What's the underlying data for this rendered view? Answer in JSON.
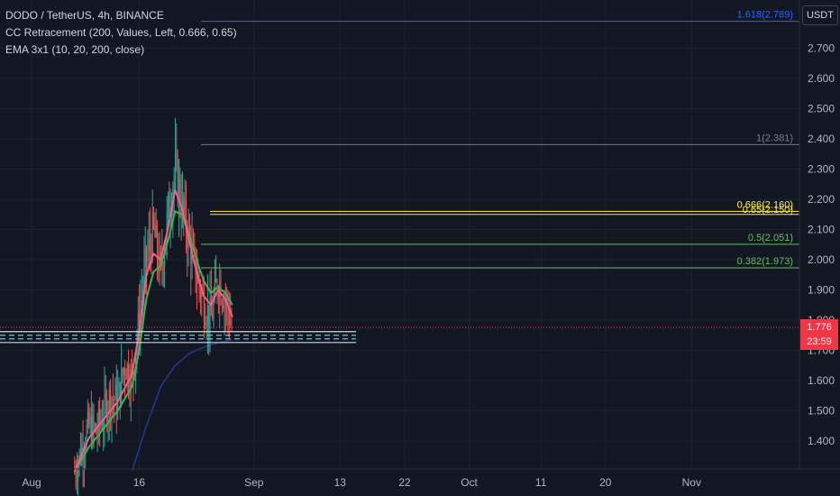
{
  "legend": {
    "symbol": "DODO / TetherUS, 4h, BINANCE",
    "indicator1": "CC Retracement (200, Values, Left, 0.666, 0.65)",
    "indicator2": "EMA 3x1 (10, 20, 200, close)"
  },
  "axis": {
    "currency": "USDT"
  },
  "last_price": {
    "value": "1.776",
    "countdown": "23:59"
  },
  "colors": {
    "background": "#131722",
    "grid": "#1e222d",
    "up": "#26a69a",
    "down": "#ef5350",
    "ema_fast": "#f06292",
    "ema_mid": "#4caf50",
    "ema_slow": "#283593",
    "fib_top": "#2962ff",
    "fib_one": "#787b86",
    "fib_golden": "#ffeb3b",
    "fib_green": "#66bb6a",
    "support_white": "#d1d4dc",
    "support_teal": "#4dd0e1",
    "last_price_line": "#f23645"
  },
  "chart_data": {
    "type": "candlestick",
    "title": "DODO / TetherUS, 4h, BINANCE",
    "xlabel": "",
    "ylabel": "",
    "ylim": [
      1.3,
      2.88
    ],
    "x_ticks": [
      "Aug",
      "16",
      "Sep",
      "13",
      "22",
      "Oct",
      "11",
      "20",
      "Nov"
    ],
    "y_ticks": [
      "1.400",
      "1.500",
      "1.600",
      "1.700",
      "1.800",
      "1.900",
      "2.000",
      "2.100",
      "2.200",
      "2.300",
      "2.400",
      "2.500",
      "2.600",
      "2.700"
    ],
    "grid": true,
    "fib_levels": [
      {
        "label": "1.618(2.789)",
        "value": 2.789,
        "color": "#2962ff"
      },
      {
        "label": "1(2.381)",
        "value": 2.381,
        "color": "#787b86"
      },
      {
        "label": "0.666(2.160)",
        "value": 2.16,
        "color": "#ffeb3b"
      },
      {
        "label": "0.65(2.150)",
        "value": 2.15,
        "color": "#ffeb3b"
      },
      {
        "label": "0.5(2.051)",
        "value": 2.051,
        "color": "#66bb6a"
      },
      {
        "label": "0.382(1.973)",
        "value": 1.973,
        "color": "#66bb6a"
      }
    ],
    "support_levels": [
      {
        "value": 1.762,
        "color": "#d1d4dc",
        "style": "solid"
      },
      {
        "value": 1.75,
        "color": "#4dd0e1",
        "style": "dashed"
      },
      {
        "value": 1.738,
        "color": "#4dd0e1",
        "style": "dashed"
      },
      {
        "value": 1.726,
        "color": "#d1d4dc",
        "style": "solid"
      }
    ],
    "last_price": 1.776,
    "close_path": [
      {
        "date": "2021-08-07",
        "value": 1.3
      },
      {
        "date": "2021-08-09",
        "value": 1.45
      },
      {
        "date": "2021-08-10",
        "value": 1.43
      },
      {
        "date": "2021-08-12",
        "value": 1.55
      },
      {
        "date": "2021-08-13",
        "value": 1.53
      },
      {
        "date": "2021-08-14",
        "value": 1.66
      },
      {
        "date": "2021-08-15",
        "value": 1.6
      },
      {
        "date": "2021-08-16",
        "value": 1.8
      },
      {
        "date": "2021-08-17",
        "value": 2.0
      },
      {
        "date": "2021-08-18",
        "value": 2.1
      },
      {
        "date": "2021-08-19",
        "value": 1.95
      },
      {
        "date": "2021-08-20",
        "value": 2.15
      },
      {
        "date": "2021-08-21",
        "value": 2.3
      },
      {
        "date": "2021-08-22",
        "value": 2.17
      },
      {
        "date": "2021-08-23",
        "value": 2.06
      },
      {
        "date": "2021-08-24",
        "value": 1.95
      },
      {
        "date": "2021-08-25",
        "value": 1.86
      },
      {
        "date": "2021-08-26",
        "value": 1.8
      },
      {
        "date": "2021-08-27",
        "value": 1.94
      },
      {
        "date": "2021-08-28",
        "value": 1.87
      },
      {
        "date": "2021-08-29",
        "value": 1.776
      }
    ],
    "series": [
      {
        "name": "EMA 10",
        "values": [
          {
            "date": "2021-08-07",
            "value": 1.3
          },
          {
            "date": "2021-08-09",
            "value": 1.41
          },
          {
            "date": "2021-08-11",
            "value": 1.47
          },
          {
            "date": "2021-08-13",
            "value": 1.53
          },
          {
            "date": "2021-08-15",
            "value": 1.62
          },
          {
            "date": "2021-08-16",
            "value": 1.76
          },
          {
            "date": "2021-08-17",
            "value": 1.95
          },
          {
            "date": "2021-08-18",
            "value": 2.02
          },
          {
            "date": "2021-08-19",
            "value": 2.0
          },
          {
            "date": "2021-08-20",
            "value": 2.1
          },
          {
            "date": "2021-08-21",
            "value": 2.23
          },
          {
            "date": "2021-08-22",
            "value": 2.17
          },
          {
            "date": "2021-08-23",
            "value": 2.06
          },
          {
            "date": "2021-08-24",
            "value": 1.96
          },
          {
            "date": "2021-08-25",
            "value": 1.88
          },
          {
            "date": "2021-08-26",
            "value": 1.85
          },
          {
            "date": "2021-08-27",
            "value": 1.9
          },
          {
            "date": "2021-08-28",
            "value": 1.87
          },
          {
            "date": "2021-08-29",
            "value": 1.81
          }
        ]
      },
      {
        "name": "EMA 20",
        "values": [
          {
            "date": "2021-08-07",
            "value": 1.3
          },
          {
            "date": "2021-08-09",
            "value": 1.38
          },
          {
            "date": "2021-08-11",
            "value": 1.44
          },
          {
            "date": "2021-08-13",
            "value": 1.5
          },
          {
            "date": "2021-08-15",
            "value": 1.58
          },
          {
            "date": "2021-08-16",
            "value": 1.7
          },
          {
            "date": "2021-08-17",
            "value": 1.87
          },
          {
            "date": "2021-08-18",
            "value": 1.96
          },
          {
            "date": "2021-08-19",
            "value": 1.98
          },
          {
            "date": "2021-08-20",
            "value": 2.06
          },
          {
            "date": "2021-08-21",
            "value": 2.16
          },
          {
            "date": "2021-08-22",
            "value": 2.15
          },
          {
            "date": "2021-08-23",
            "value": 2.08
          },
          {
            "date": "2021-08-24",
            "value": 2.0
          },
          {
            "date": "2021-08-25",
            "value": 1.93
          },
          {
            "date": "2021-08-26",
            "value": 1.89
          },
          {
            "date": "2021-08-27",
            "value": 1.91
          },
          {
            "date": "2021-08-28",
            "value": 1.89
          },
          {
            "date": "2021-08-29",
            "value": 1.85
          }
        ]
      },
      {
        "name": "EMA 200",
        "values": [
          {
            "date": "2021-08-15",
            "value": 1.3
          },
          {
            "date": "2021-08-17",
            "value": 1.45
          },
          {
            "date": "2021-08-19",
            "value": 1.58
          },
          {
            "date": "2021-08-21",
            "value": 1.65
          },
          {
            "date": "2021-08-23",
            "value": 1.69
          },
          {
            "date": "2021-08-25",
            "value": 1.71
          },
          {
            "date": "2021-08-27",
            "value": 1.725
          },
          {
            "date": "2021-08-29",
            "value": 1.735
          }
        ]
      }
    ]
  }
}
